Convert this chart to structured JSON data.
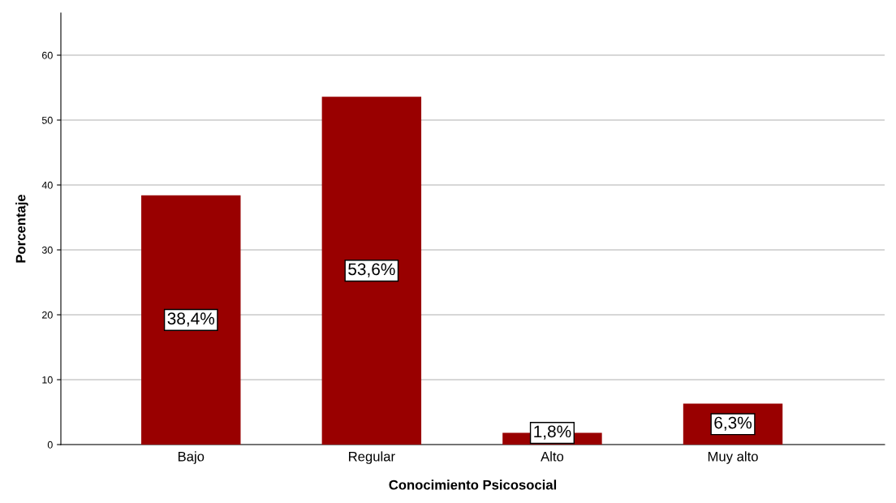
{
  "chart_data": {
    "type": "bar",
    "xlabel": "Conocimiento Psicosocial",
    "ylabel": "Porcentaje",
    "categories": [
      "Bajo",
      "Regular",
      "Alto",
      "Muy alto"
    ],
    "values": [
      38.4,
      53.6,
      1.8,
      6.3
    ],
    "value_labels": [
      "38,4%",
      "53,6%",
      "1,8%",
      "6,3%"
    ],
    "color": "#990000",
    "ylim": [
      0,
      66.5
    ],
    "yticks": [
      0,
      10,
      20,
      30,
      40,
      50,
      60
    ],
    "grid": "y"
  }
}
